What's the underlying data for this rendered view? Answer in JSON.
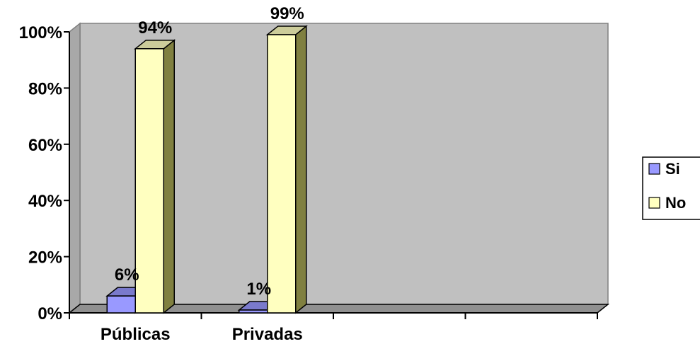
{
  "chart_data": {
    "type": "bar",
    "variant": "3d-clustered-column",
    "categories": [
      "Públicas",
      "Privadas"
    ],
    "series": [
      {
        "name": "Si",
        "values": [
          6,
          1
        ],
        "labels": [
          "6%",
          "1%"
        ],
        "color": "#9999ff"
      },
      {
        "name": "No",
        "values": [
          94,
          99
        ],
        "labels": [
          "94%",
          "99%"
        ],
        "color": "#ffffc0"
      }
    ],
    "yticks": [
      "0%",
      "20%",
      "40%",
      "60%",
      "80%",
      "100%"
    ],
    "ylim": [
      0,
      100
    ],
    "legend_position": "right",
    "plot_background": "#c0c0c0",
    "side_color": "#808040"
  }
}
